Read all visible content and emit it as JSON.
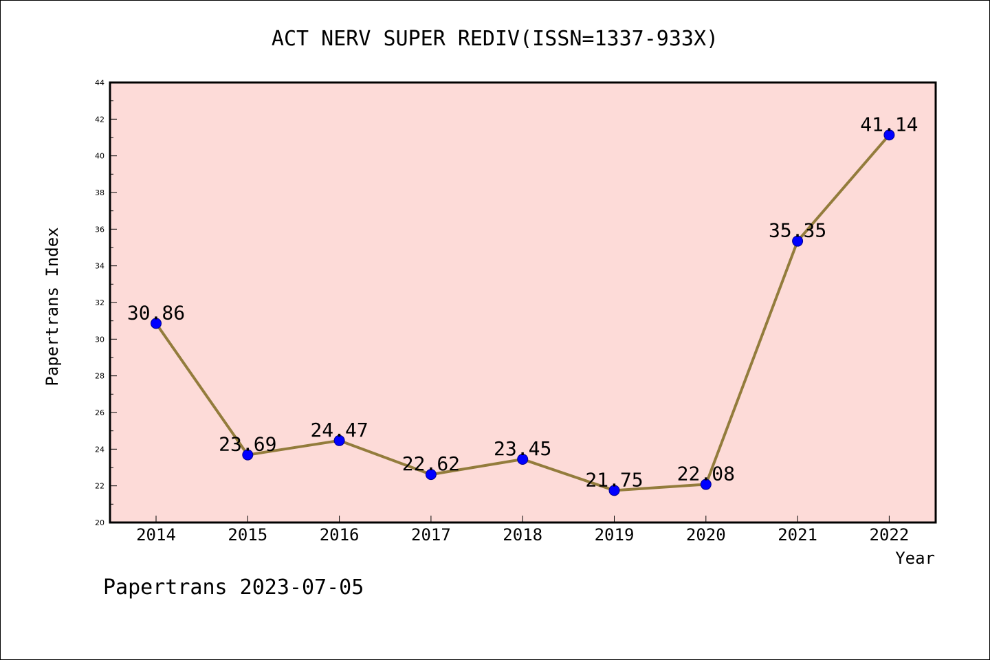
{
  "chart_data": {
    "type": "line",
    "title": "ACT NERV SUPER REDIV(ISSN=1337-933X)",
    "xlabel": "Year",
    "ylabel": "Papertrans Index",
    "footer": "Papertrans 2023-07-05",
    "categories": [
      "2014",
      "2015",
      "2016",
      "2017",
      "2018",
      "2019",
      "2020",
      "2021",
      "2022"
    ],
    "series": [
      {
        "values": [
          30.86,
          23.69,
          24.47,
          22.62,
          23.45,
          21.75,
          22.08,
          35.35,
          41.14
        ],
        "labels": [
          "30.86",
          "23.69",
          "24.47",
          "22.62",
          "23.45",
          "21.75",
          "22.08",
          "35.35",
          "41.14"
        ]
      }
    ],
    "ylim": [
      20,
      44
    ],
    "yticks": [
      "20",
      "22",
      "24",
      "26",
      "28",
      "30",
      "32",
      "34",
      "36",
      "38",
      "40",
      "42",
      "44"
    ],
    "grid": false,
    "colors": {
      "plot_background": "#fddbd8",
      "line": "#937c3c",
      "marker": "#0000ff",
      "marker_edge": "#00008b"
    }
  }
}
